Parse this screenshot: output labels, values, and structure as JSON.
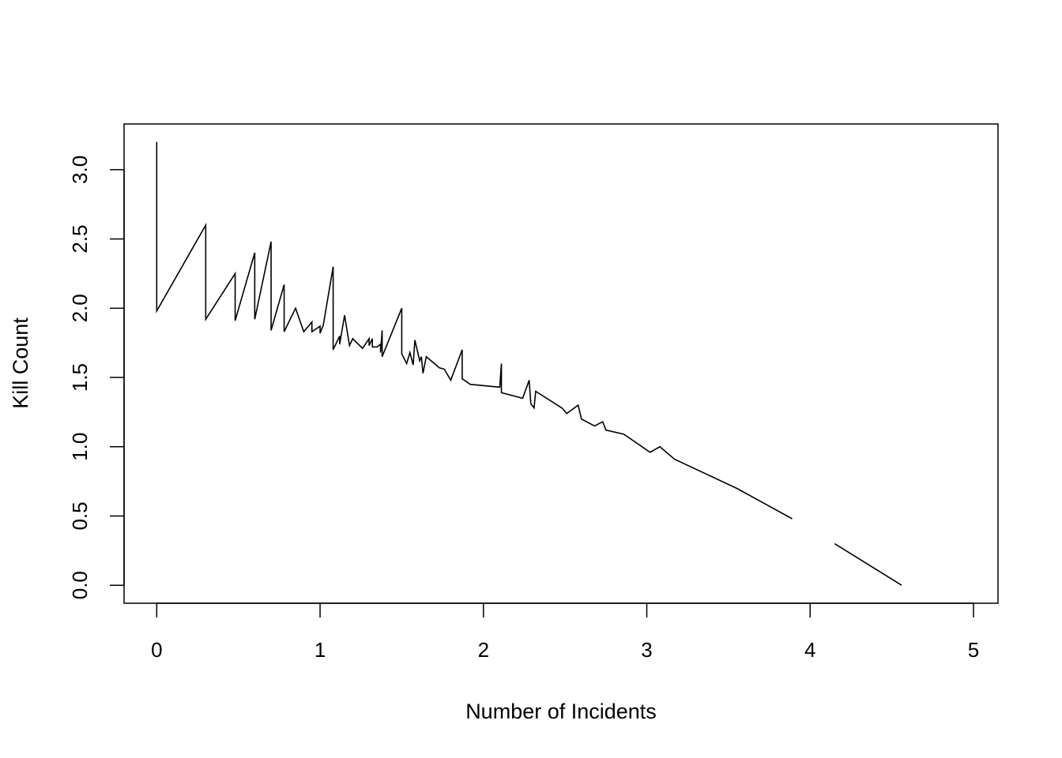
{
  "chart_data": {
    "type": "line",
    "title": "",
    "xlabel": "Number of Incidents",
    "ylabel": "Kill Count",
    "xlim": [
      -0.2,
      5.15
    ],
    "ylim": [
      -0.13,
      3.33
    ],
    "x_ticks": [
      0,
      1,
      2,
      3,
      4,
      5
    ],
    "x_tick_labels": [
      "0",
      "1",
      "2",
      "3",
      "4",
      "5"
    ],
    "y_ticks": [
      0.0,
      0.5,
      1.0,
      1.5,
      2.0,
      2.5,
      3.0
    ],
    "y_tick_labels": [
      "0.0",
      "0.5",
      "1.0",
      "1.5",
      "2.0",
      "2.5",
      "3.0"
    ],
    "grid": false,
    "legend": "none",
    "line_color": "#000000",
    "series": [
      {
        "segments": [
          [
            [
              0.0,
              3.2
            ],
            [
              0.0,
              1.98
            ],
            [
              0.3,
              2.6
            ],
            [
              0.3,
              1.92
            ],
            [
              0.48,
              2.25
            ],
            [
              0.48,
              1.91
            ],
            [
              0.6,
              2.4
            ],
            [
              0.6,
              1.92
            ],
            [
              0.7,
              2.48
            ],
            [
              0.7,
              1.84
            ],
            [
              0.78,
              2.17
            ],
            [
              0.78,
              1.83
            ],
            [
              0.85,
              2.0
            ],
            [
              0.9,
              1.83
            ],
            [
              0.95,
              1.9
            ],
            [
              0.95,
              1.83
            ],
            [
              1.0,
              1.87
            ],
            [
              1.0,
              1.82
            ],
            [
              1.02,
              1.88
            ],
            [
              1.08,
              2.3
            ],
            [
              1.08,
              1.7
            ],
            [
              1.12,
              1.8
            ],
            [
              1.12,
              1.74
            ],
            [
              1.15,
              1.95
            ],
            [
              1.18,
              1.73
            ],
            [
              1.2,
              1.78
            ],
            [
              1.26,
              1.71
            ],
            [
              1.3,
              1.78
            ],
            [
              1.3,
              1.73
            ],
            [
              1.32,
              1.78
            ],
            [
              1.32,
              1.72
            ],
            [
              1.35,
              1.72
            ],
            [
              1.37,
              1.74
            ],
            [
              1.37,
              1.68
            ],
            [
              1.38,
              1.84
            ],
            [
              1.38,
              1.65
            ],
            [
              1.5,
              2.0
            ],
            [
              1.5,
              1.67
            ],
            [
              1.53,
              1.6
            ],
            [
              1.55,
              1.68
            ],
            [
              1.57,
              1.59
            ],
            [
              1.58,
              1.77
            ],
            [
              1.61,
              1.62
            ],
            [
              1.62,
              1.65
            ],
            [
              1.63,
              1.53
            ],
            [
              1.65,
              1.65
            ],
            [
              1.7,
              1.6
            ],
            [
              1.73,
              1.57
            ],
            [
              1.76,
              1.56
            ],
            [
              1.8,
              1.48
            ],
            [
              1.87,
              1.7
            ],
            [
              1.87,
              1.49
            ],
            [
              1.92,
              1.45
            ],
            [
              2.1,
              1.43
            ],
            [
              2.11,
              1.6
            ],
            [
              2.11,
              1.39
            ],
            [
              2.24,
              1.35
            ],
            [
              2.28,
              1.48
            ],
            [
              2.29,
              1.31
            ],
            [
              2.31,
              1.28
            ],
            [
              2.32,
              1.4
            ],
            [
              2.48,
              1.28
            ],
            [
              2.51,
              1.24
            ],
            [
              2.58,
              1.3
            ],
            [
              2.6,
              1.2
            ],
            [
              2.68,
              1.15
            ],
            [
              2.73,
              1.18
            ],
            [
              2.75,
              1.12
            ],
            [
              2.86,
              1.09
            ],
            [
              3.02,
              0.96
            ],
            [
              3.08,
              1.0
            ],
            [
              3.17,
              0.91
            ],
            [
              3.55,
              0.7
            ],
            [
              3.89,
              0.48
            ]
          ],
          [
            [
              4.15,
              0.3
            ],
            [
              4.56,
              0.0
            ]
          ]
        ]
      }
    ]
  }
}
